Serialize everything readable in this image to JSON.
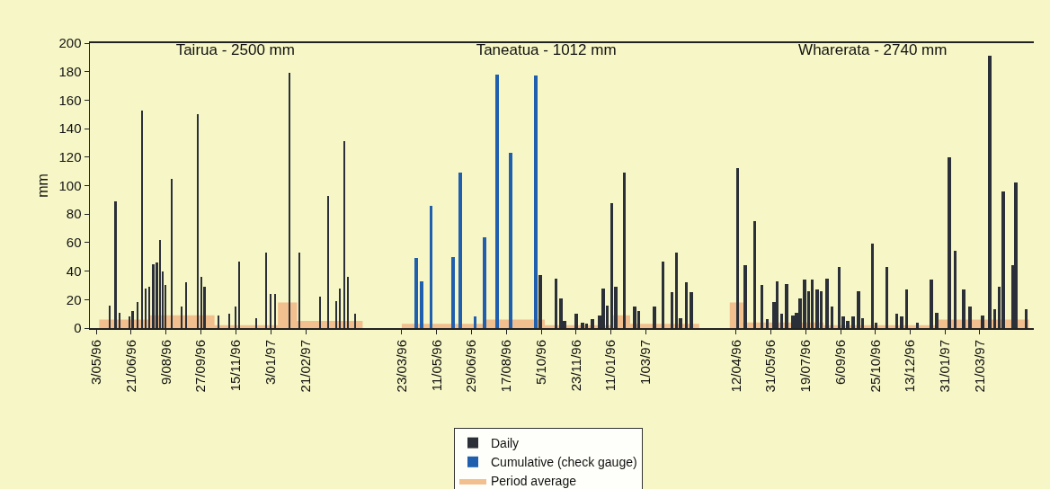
{
  "chart_data": [
    {
      "type": "bar",
      "title": "Tairua - 2500 mm",
      "ylabel": "mm",
      "xlim": [
        "1996-04-24",
        "1997-06-07"
      ],
      "ylim": [
        0,
        200
      ],
      "yticks": [
        0,
        20,
        40,
        60,
        80,
        100,
        120,
        140,
        160,
        180,
        200
      ],
      "xticks": [
        {
          "value": "1996-05-03",
          "label": "3/05/96"
        },
        {
          "value": "1996-06-21",
          "label": "21/06/96"
        },
        {
          "value": "1996-08-09",
          "label": "9/08/96"
        },
        {
          "value": "1996-09-27",
          "label": "27/09/96"
        },
        {
          "value": "1996-11-15",
          "label": "15/11/96"
        },
        {
          "value": "1997-01-03",
          "label": "3/01/97"
        },
        {
          "value": "1997-02-21",
          "label": "21/02/97"
        }
      ],
      "series": [
        {
          "type": "area",
          "color": "#f2c08e",
          "x": [
            "1996-05-07",
            "1996-07-17",
            "1996-07-17",
            "1996-10-16",
            "1996-10-16",
            "1997-01-13",
            "1997-01-13",
            "1997-02-09",
            "1997-02-09",
            "1997-05-12"
          ],
          "values": [
            6,
            6,
            9,
            9,
            2,
            2,
            18,
            18,
            5,
            5
          ]
        },
        {
          "color": "#2b3038",
          "x": [
            "1996-05-22",
            "1996-05-30",
            "1996-06-05",
            "1996-06-18",
            "1996-06-23",
            "1996-06-30",
            "1996-07-06",
            "1996-07-11",
            "1996-07-16",
            "1996-07-22",
            "1996-07-27",
            "1996-08-01",
            "1996-08-04",
            "1996-08-08",
            "1996-08-17",
            "1996-08-31",
            "1996-09-06",
            "1996-09-22",
            "1996-09-27",
            "1996-10-02",
            "1996-10-22",
            "1996-11-06",
            "1996-11-15",
            "1996-11-20",
            "1996-12-13",
            "1996-12-27",
            "1997-01-03",
            "1997-01-09",
            "1997-01-29",
            "1997-02-12",
            "1997-03-13",
            "1997-03-25",
            "1997-04-05",
            "1997-04-10",
            "1997-04-16",
            "1997-04-21",
            "1997-05-01"
          ],
          "values": [
            16,
            89,
            11,
            8,
            12,
            18,
            153,
            28,
            29,
            45,
            46,
            62,
            40,
            30,
            105,
            15,
            32,
            150,
            36,
            29,
            9,
            10,
            15,
            47,
            7,
            53,
            24,
            24,
            179,
            53,
            22,
            93,
            19,
            28,
            131,
            36,
            10
          ]
        }
      ]
    },
    {
      "type": "bar",
      "title": "Taneatua - 1012 mm",
      "legend": "bottom",
      "tick_labels": "x",
      "xlim": [
        "1996-02-23",
        "1997-06-02"
      ],
      "ylim": [
        0,
        200
      ],
      "yticks": [
        0,
        20,
        40,
        60,
        80,
        100,
        120,
        140,
        160,
        180,
        200
      ],
      "xticks": [
        {
          "value": "1996-03-23",
          "label": "23/03/96"
        },
        {
          "value": "1996-05-11",
          "label": "11/05/96"
        },
        {
          "value": "1996-06-29",
          "label": "29/06/96"
        },
        {
          "value": "1996-08-17",
          "label": "17/08/96"
        },
        {
          "value": "1996-10-05",
          "label": "5/10/96"
        },
        {
          "value": "1996-11-23",
          "label": "23/11/96"
        },
        {
          "value": "1997-01-11",
          "label": "11/01/96"
        },
        {
          "value": "1997-03-01",
          "label": "1/03/97"
        }
      ],
      "series": [
        {
          "name": "Daily",
          "color": "#2b3038",
          "x": [
            "1996-10-04",
            "1996-10-26",
            "1996-11-02",
            "1996-11-07",
            "1996-11-23",
            "1996-12-02",
            "1996-12-08",
            "1996-12-16",
            "1996-12-26",
            "1996-12-31",
            "1997-01-06",
            "1997-01-12",
            "1997-01-18",
            "1997-01-30",
            "1997-02-13",
            "1997-02-19",
            "1997-03-13",
            "1997-03-25",
            "1997-04-07",
            "1997-04-13",
            "1997-04-19",
            "1997-04-27",
            "1997-05-04"
          ],
          "values": [
            37,
            35,
            21,
            5,
            10,
            4,
            3,
            6,
            9,
            28,
            16,
            88,
            29,
            109,
            15,
            12,
            15,
            47,
            25,
            53,
            7,
            32,
            25
          ]
        },
        {
          "name": "Cumulative (check gauge)",
          "color": "#1f5fae",
          "x": [
            "1996-04-12",
            "1996-04-20",
            "1996-05-03",
            "1996-06-03",
            "1996-06-13",
            "1996-07-04",
            "1996-07-17",
            "1996-08-04",
            "1996-08-23",
            "1996-09-27"
          ],
          "values": [
            49,
            33,
            86,
            50,
            109,
            8,
            64,
            178,
            123,
            177
          ]
        },
        {
          "type": "area",
          "name": "Period average",
          "color": "#f2c08e",
          "x": [
            "1996-03-23",
            "1996-07-17",
            "1996-07-17",
            "1996-10-10",
            "1996-10-10",
            "1997-01-11",
            "1997-01-11",
            "1997-02-07",
            "1997-02-07",
            "1997-05-15"
          ],
          "values": [
            3,
            3,
            6,
            6,
            2,
            2,
            9,
            9,
            3,
            3
          ]
        }
      ]
    },
    {
      "type": "bar",
      "title": "Wharerata - 2740 mm",
      "tick_labels": "x",
      "xlim": [
        "1996-03-09",
        "1997-06-05"
      ],
      "ylim": [
        0,
        200
      ],
      "yticks": [
        0,
        20,
        40,
        60,
        80,
        100,
        120,
        140,
        160,
        180,
        200
      ],
      "xticks": [
        {
          "value": "1996-04-12",
          "label": "12/04/96"
        },
        {
          "value": "1996-05-31",
          "label": "31/05/96"
        },
        {
          "value": "1996-07-19",
          "label": "19/07/96"
        },
        {
          "value": "1996-09-06",
          "label": "6/09/96"
        },
        {
          "value": "1996-10-25",
          "label": "25/10/96"
        },
        {
          "value": "1996-12-13",
          "label": "13/12/96"
        },
        {
          "value": "1997-01-31",
          "label": "31/01/97"
        },
        {
          "value": "1997-03-21",
          "label": "21/03/97"
        }
      ],
      "series": [
        {
          "type": "area",
          "color": "#f2c08e",
          "x": [
            "1996-04-03",
            "1996-04-22",
            "1996-04-22",
            "1996-08-13",
            "1996-08-13",
            "1997-01-21",
            "1997-01-21",
            "1997-05-29"
          ],
          "values": [
            18,
            18,
            4,
            4,
            2,
            2,
            6,
            6
          ]
        },
        {
          "color": "#2b3038",
          "x": [
            "1996-04-14",
            "1996-04-25",
            "1996-05-08",
            "1996-05-18",
            "1996-05-26",
            "1996-06-04",
            "1996-06-09",
            "1996-06-15",
            "1996-06-22",
            "1996-07-01",
            "1996-07-06",
            "1996-07-11",
            "1996-07-17",
            "1996-07-23",
            "1996-07-28",
            "1996-08-04",
            "1996-08-10",
            "1996-08-18",
            "1996-08-25",
            "1996-09-04",
            "1996-09-10",
            "1996-09-16",
            "1996-09-24",
            "1996-10-01",
            "1996-10-07",
            "1996-10-21",
            "1996-10-26",
            "1996-11-10",
            "1996-11-24",
            "1996-12-01",
            "1996-12-08",
            "1996-12-23",
            "1997-01-12",
            "1997-01-19",
            "1997-02-06",
            "1997-02-14",
            "1997-02-26",
            "1997-03-07",
            "1997-03-25",
            "1997-04-04",
            "1997-04-11",
            "1997-04-17",
            "1997-04-23",
            "1997-05-06",
            "1997-05-11",
            "1997-05-25"
          ],
          "values": [
            112,
            44,
            75,
            30,
            6,
            18,
            33,
            10,
            31,
            9,
            11,
            21,
            34,
            26,
            34,
            27,
            26,
            35,
            15,
            43,
            8,
            5,
            8,
            26,
            7,
            59,
            4,
            43,
            10,
            8,
            27,
            4,
            34,
            11,
            120,
            54,
            27,
            15,
            9,
            191,
            13,
            29,
            96,
            44,
            102,
            13
          ]
        }
      ]
    }
  ]
}
